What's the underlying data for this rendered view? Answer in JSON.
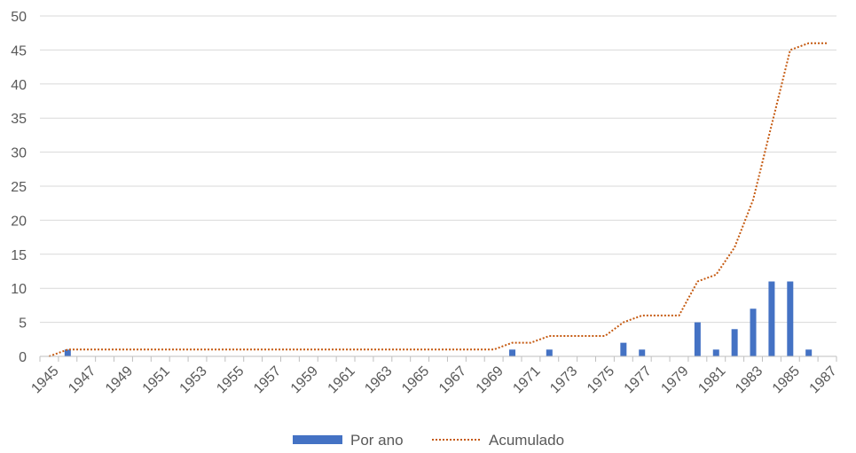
{
  "chart_data": {
    "type": "bar",
    "title": "",
    "xlabel": "",
    "ylabel": "",
    "ylim": [
      0,
      50
    ],
    "yticks": [
      0,
      5,
      10,
      15,
      20,
      25,
      30,
      35,
      40,
      45,
      50
    ],
    "grid": true,
    "legend_position": "bottom",
    "x": [
      1945,
      1946,
      1947,
      1948,
      1949,
      1950,
      1951,
      1952,
      1953,
      1954,
      1955,
      1956,
      1957,
      1958,
      1959,
      1960,
      1961,
      1962,
      1963,
      1964,
      1965,
      1966,
      1967,
      1968,
      1969,
      1970,
      1971,
      1972,
      1973,
      1974,
      1975,
      1976,
      1977,
      1978,
      1979,
      1980,
      1981,
      1982,
      1983,
      1984,
      1985,
      1986,
      1987
    ],
    "xtick_labels": [
      "1945",
      "1947",
      "1949",
      "1951",
      "1953",
      "1955",
      "1957",
      "1959",
      "1961",
      "1963",
      "1965",
      "1967",
      "1969",
      "1971",
      "1973",
      "1975",
      "1977",
      "1979",
      "1981",
      "1983",
      "1985",
      "1987"
    ],
    "series": [
      {
        "name": "Por ano",
        "type": "bar",
        "color": "#4472C4",
        "values": [
          0,
          1,
          0,
          0,
          0,
          0,
          0,
          0,
          0,
          0,
          0,
          0,
          0,
          0,
          0,
          0,
          0,
          0,
          0,
          0,
          0,
          0,
          0,
          0,
          0,
          1,
          0,
          1,
          0,
          0,
          0,
          2,
          1,
          0,
          0,
          5,
          1,
          4,
          7,
          11,
          11,
          1,
          0
        ]
      },
      {
        "name": "Acumulado",
        "type": "line",
        "style": "dotted",
        "color": "#C55A11",
        "values": [
          0,
          1,
          1,
          1,
          1,
          1,
          1,
          1,
          1,
          1,
          1,
          1,
          1,
          1,
          1,
          1,
          1,
          1,
          1,
          1,
          1,
          1,
          1,
          1,
          1,
          2,
          2,
          3,
          3,
          3,
          3,
          5,
          6,
          6,
          6,
          11,
          12,
          16,
          23,
          34,
          45,
          46,
          46
        ]
      }
    ]
  }
}
